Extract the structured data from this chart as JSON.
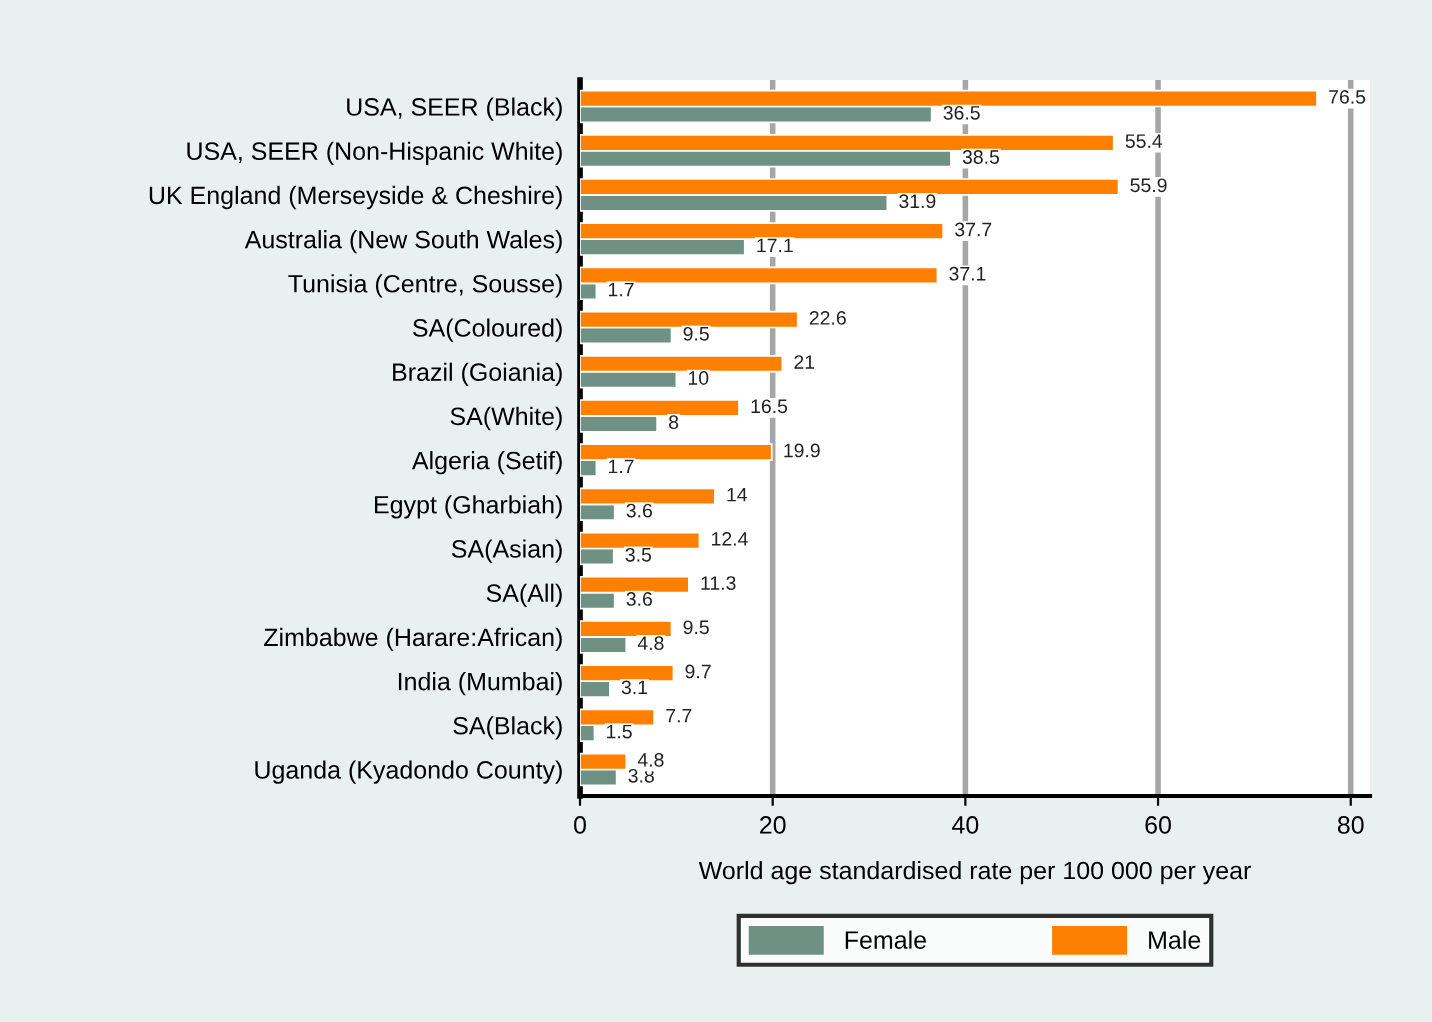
{
  "chart_data": {
    "type": "bar",
    "orientation": "horizontal",
    "categories": [
      "USA, SEER (Black)",
      "USA, SEER (Non-Hispanic White)",
      "UK England (Merseyside & Cheshire)",
      "Australia (New South Wales)",
      "Tunisia (Centre, Sousse)",
      "SA(Coloured)",
      "Brazil (Goiania)",
      "SA(White)",
      "Algeria (Setif)",
      "Egypt (Gharbiah)",
      "SA(Asian)",
      "SA(All)",
      "Zimbabwe (Harare:African)",
      "India (Mumbai)",
      "SA(Black)",
      "Uganda (Kyadondo County)"
    ],
    "series": [
      {
        "name": "Female",
        "color": "#6e9184",
        "values": [
          36.5,
          38.5,
          31.9,
          17.1,
          1.7,
          9.5,
          10,
          8,
          1.7,
          3.6,
          3.5,
          3.6,
          4.8,
          3.1,
          1.5,
          3.8
        ]
      },
      {
        "name": "Male",
        "color": "#ff8000",
        "values": [
          76.5,
          55.4,
          55.9,
          37.7,
          37.1,
          22.6,
          21,
          16.5,
          19.9,
          14,
          12.4,
          11.3,
          9.5,
          9.7,
          7.7,
          4.8
        ]
      }
    ],
    "xlabel": "World age standardised rate per 100 000 per year",
    "xlim": [
      0,
      82
    ],
    "xticks": [
      0,
      20,
      40,
      60,
      80
    ],
    "grid": "x",
    "legend": "bottom",
    "data_labels": true
  }
}
